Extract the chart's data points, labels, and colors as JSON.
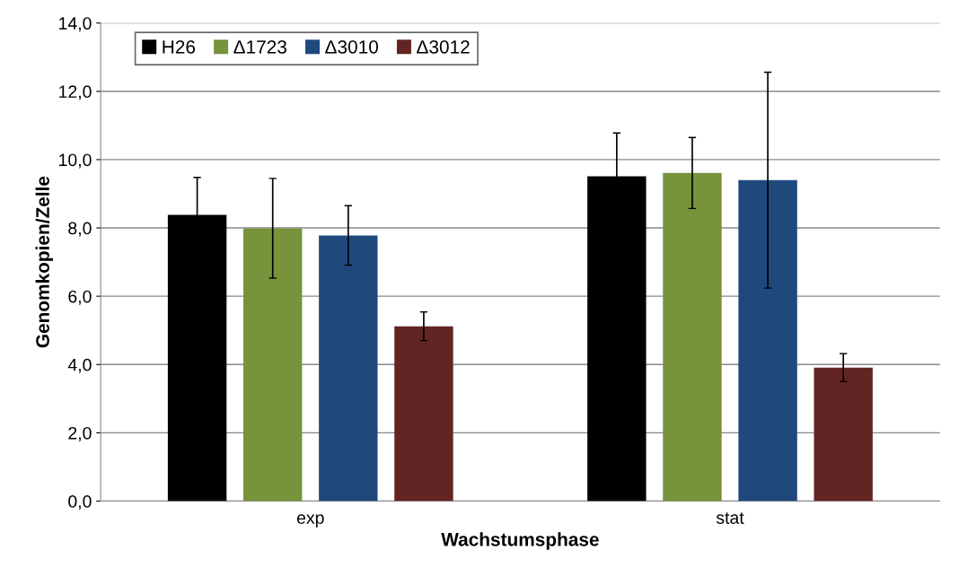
{
  "chart_data": {
    "type": "bar",
    "xlabel": "Wachstumsphase",
    "ylabel": "Genomkopien/Zelle",
    "categories": [
      "exp",
      "stat"
    ],
    "series": [
      {
        "name": "H26",
        "color": "#000000",
        "values": [
          8.38,
          9.51
        ],
        "errors": [
          1.1,
          1.27
        ]
      },
      {
        "name": "Δ1723",
        "color": "#77933c",
        "values": [
          7.99,
          9.61
        ],
        "errors": [
          1.46,
          1.04
        ]
      },
      {
        "name": "Δ3010",
        "color": "#1f497d",
        "values": [
          7.78,
          9.4
        ],
        "errors": [
          0.87,
          3.16
        ]
      },
      {
        "name": "Δ3012",
        "color": "#632523",
        "values": [
          5.12,
          3.91
        ],
        "errors": [
          0.42,
          0.41
        ]
      }
    ],
    "ylim": [
      0,
      14
    ],
    "yticks": [
      {
        "value": 0,
        "label": "0,0"
      },
      {
        "value": 2,
        "label": "2,0"
      },
      {
        "value": 4,
        "label": "4,0"
      },
      {
        "value": 6,
        "label": "6,0"
      },
      {
        "value": 8,
        "label": "8,0"
      },
      {
        "value": 10,
        "label": "10,0"
      },
      {
        "value": 12,
        "label": "12,0"
      },
      {
        "value": 14,
        "label": "14,0"
      }
    ],
    "grid": "y",
    "legend": "top left"
  }
}
